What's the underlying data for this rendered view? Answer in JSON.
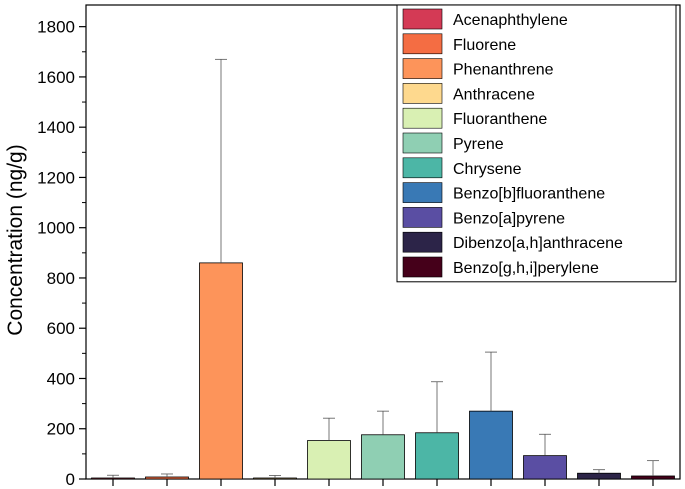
{
  "chart_data": {
    "type": "bar",
    "ylabel": "Concentration (ng/g)",
    "xlabel": "",
    "ylim": [
      0,
      1900
    ],
    "yticks": [
      0,
      200,
      400,
      600,
      800,
      1000,
      1200,
      1400,
      1600,
      1800
    ],
    "grid": false,
    "legend_position": "top-right",
    "categories": [
      "Acenaphthylene",
      "Fluorene",
      "Phenanthrene",
      "Anthracene",
      "Fluoranthene",
      "Pyrene",
      "Chrysene",
      "Benzo[b]fluoranthene",
      "Benzo[a]pyrene",
      "Dibenzo[a,h]anthracene",
      "Benzo[g,h,i]perylene"
    ],
    "values": [
      4,
      8,
      860,
      4,
      153,
      176,
      184,
      270,
      93,
      23,
      12
    ],
    "error_upper": [
      15,
      20,
      1670,
      14,
      242,
      270,
      387,
      505,
      178,
      37,
      73
    ],
    "error_lower": [
      0,
      0,
      860,
      0,
      38,
      22,
      0,
      270,
      93,
      23,
      12
    ],
    "colors": [
      "#d43a55",
      "#f46d43",
      "#fd945a",
      "#fed98e",
      "#d9f0b3",
      "#8fcfb3",
      "#4cb6a6",
      "#3979b5",
      "#5a4ea3",
      "#2c2448",
      "#45001a"
    ]
  }
}
